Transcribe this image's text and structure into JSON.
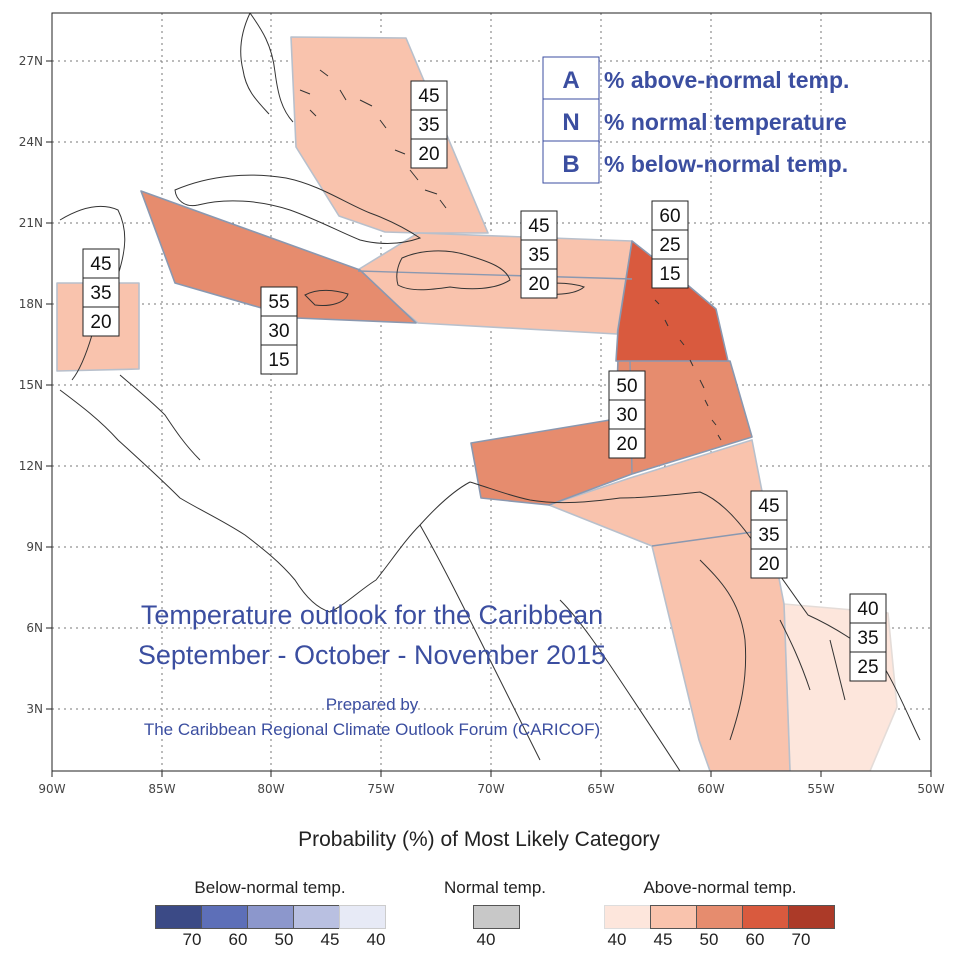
{
  "map": {
    "title_line1": "Temperature outlook for the Caribbean",
    "title_line2": "September - October - November 2015",
    "prepared_by": "Prepared by",
    "prepared_org": "The Caribbean Regional Climate Outlook Forum (CARICOF)",
    "lon_ticks": [
      "90W",
      "85W",
      "80W",
      "75W",
      "70W",
      "65W",
      "60W",
      "55W",
      "50W"
    ],
    "lat_ticks": [
      "27N",
      "24N",
      "21N",
      "18N",
      "15N",
      "12N",
      "9N",
      "6N",
      "3N"
    ]
  },
  "key": {
    "rows": [
      {
        "letter": "A",
        "text": "% above-normal temp."
      },
      {
        "letter": "N",
        "text": "% normal temperature"
      },
      {
        "letter": "B",
        "text": "% below-normal temp."
      }
    ]
  },
  "regions": [
    {
      "name": "bahamas",
      "A": "45",
      "N": "35",
      "B": "20",
      "category": "above",
      "color": "#f9c3ad"
    },
    {
      "name": "cuba-jamaica",
      "A": "55",
      "N": "30",
      "B": "15",
      "category": "above",
      "color": "#e68c6e"
    },
    {
      "name": "hispaniola-puerto-rico",
      "A": "45",
      "N": "35",
      "B": "20",
      "category": "above",
      "color": "#f9c3ad"
    },
    {
      "name": "belize",
      "A": "45",
      "N": "35",
      "B": "20",
      "category": "above",
      "color": "#f9c3ad"
    },
    {
      "name": "leeward-islands",
      "A": "60",
      "N": "25",
      "B": "15",
      "category": "above",
      "color": "#d95a3e"
    },
    {
      "name": "windward-islands",
      "A": "50",
      "N": "30",
      "B": "20",
      "category": "above",
      "color": "#e68c6e"
    },
    {
      "name": "guianas",
      "A": "45",
      "N": "35",
      "B": "20",
      "category": "above",
      "color": "#f9c3ad"
    },
    {
      "name": "french-guiana",
      "A": "40",
      "N": "35",
      "B": "25",
      "category": "above",
      "color": "#fde6dc"
    }
  ],
  "legend": {
    "title": "Probability (%) of Most Likely Category",
    "below": {
      "title": "Below-normal temp.",
      "labels": [
        "70",
        "60",
        "50",
        "45",
        "40"
      ],
      "colors": [
        "#3b4a86",
        "#5d6fb8",
        "#8c97cc",
        "#b9c0e1",
        "#e7eaf6"
      ]
    },
    "normal": {
      "title": "Normal temp.",
      "labels": [
        "40"
      ],
      "colors": [
        "#c8c8c8"
      ]
    },
    "above": {
      "title": "Above-normal temp.",
      "labels": [
        "40",
        "45",
        "50",
        "60",
        "70"
      ],
      "colors": [
        "#fde6dc",
        "#f9c3ad",
        "#e68c6e",
        "#d95a3e",
        "#ac3a28"
      ]
    }
  },
  "colors": {
    "title_blue": "#3b4ea0",
    "key_blue": "#3b4ea0",
    "coast": "#333333",
    "grid": "#777777"
  }
}
